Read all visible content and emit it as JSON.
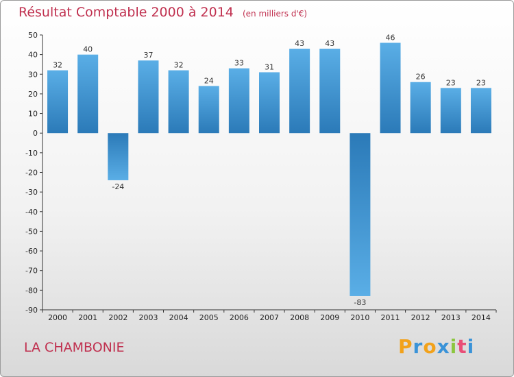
{
  "header": {
    "title": "Résultat Comptable 2000 à 2014",
    "subtitle": "(en milliers d'€)"
  },
  "footer": {
    "commune": "LA CHAMBONIE",
    "logo": "Proxiti"
  },
  "colors": {
    "title": "#c0304f",
    "bar_top": "#5aaee6",
    "bar_bottom": "#2b7ab8",
    "logo_letters": [
      "#f2a21b",
      "#3a93d8",
      "#f2a21b",
      "#3a93d8",
      "#8cc63f",
      "#e94e77",
      "#3a93d8"
    ]
  },
  "chart_data": {
    "type": "bar",
    "title": "Résultat Comptable 2000 à 2014",
    "subtitle": "(en milliers d'€)",
    "xlabel": "",
    "ylabel": "",
    "categories": [
      "2000",
      "2001",
      "2002",
      "2003",
      "2004",
      "2005",
      "2006",
      "2007",
      "2008",
      "2009",
      "2010",
      "2011",
      "2012",
      "2013",
      "2014"
    ],
    "values": [
      32,
      40,
      -24,
      37,
      32,
      24,
      33,
      31,
      43,
      43,
      -83,
      46,
      26,
      23,
      23
    ],
    "ylim": [
      -90,
      50
    ],
    "yticks": [
      50,
      40,
      30,
      20,
      10,
      0,
      -10,
      -20,
      -30,
      -40,
      -50,
      -60,
      -70,
      -80,
      -90
    ],
    "grid": false,
    "legend": "none"
  }
}
